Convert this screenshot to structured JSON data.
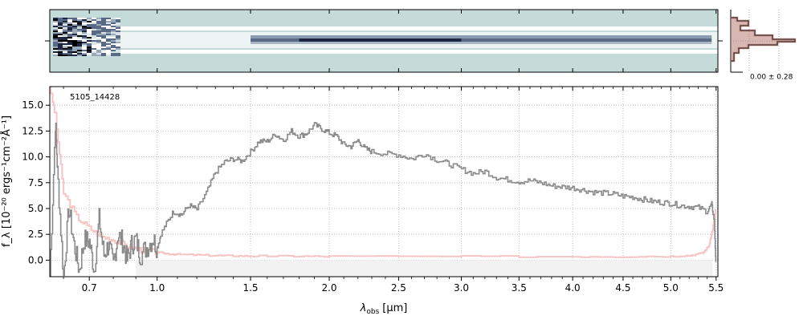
{
  "spectrum2d": {
    "colors": {
      "background": "#c5dbd9",
      "dark": "#1f2642",
      "mid": "#5a6a86",
      "light": "#ffffff"
    }
  },
  "histogram": {
    "annotation": "0.00 ± 0.28",
    "colors": {
      "dark": "#333333",
      "fill": "#b87a73"
    }
  },
  "chart_data": {
    "type": "line",
    "title": "",
    "object_label": "5105_14428",
    "xlabel_main": "λ",
    "xlabel_sub": "obs",
    "xlabel_unit": "[μm]",
    "ylabel": "f_λ [10⁻²⁰ ergs⁻¹cm⁻²Å⁻¹]",
    "x_scale": "sqrt",
    "xlim": [
      0.55,
      5.52
    ],
    "ylim": [
      -1.6,
      16.8
    ],
    "xticks": [
      0.7,
      1.0,
      1.5,
      2.0,
      2.5,
      3.0,
      3.5,
      4.0,
      4.5,
      5.0,
      5.5
    ],
    "xtick_labels": [
      "0.7",
      "1.0",
      "1.5",
      "2.0",
      "2.5",
      "3.0",
      "3.5",
      "4.0",
      "4.5",
      "5.0",
      "5.5"
    ],
    "yticks": [
      0.0,
      2.5,
      5.0,
      7.5,
      10.0,
      12.5,
      15.0
    ],
    "ytick_labels": [
      "0.0",
      "2.5",
      "5.0",
      "7.5",
      "10.0",
      "12.5",
      "15.0"
    ],
    "grid": true,
    "colors": {
      "flux": "#8a8a8a",
      "error": "#f7c4c4",
      "model": "#c98a84",
      "zero_band": "#f2f2f2"
    },
    "series": [
      {
        "role": "flux",
        "x": [
          0.55,
          0.57,
          0.58,
          0.6,
          0.62,
          0.64,
          0.66,
          0.68,
          0.7,
          0.72,
          0.74,
          0.76,
          0.78,
          0.8,
          0.82,
          0.84,
          0.86,
          0.88,
          0.9,
          0.92,
          0.95,
          0.98,
          1.0,
          1.02,
          1.05,
          1.08,
          1.12,
          1.16,
          1.2,
          1.25,
          1.3,
          1.35,
          1.4,
          1.45,
          1.5,
          1.55,
          1.6,
          1.65,
          1.7,
          1.75,
          1.8,
          1.85,
          1.9,
          1.95,
          2.0,
          2.05,
          2.1,
          2.15,
          2.2,
          2.25,
          2.3,
          2.4,
          2.5,
          2.6,
          2.7,
          2.8,
          2.9,
          3.0,
          3.1,
          3.2,
          3.3,
          3.4,
          3.5,
          3.6,
          3.7,
          3.8,
          3.9,
          4.0,
          4.1,
          4.2,
          4.3,
          4.4,
          4.5,
          4.6,
          4.7,
          4.8,
          4.9,
          5.0,
          5.1,
          5.2,
          5.3,
          5.4,
          5.45,
          5.48,
          5.5
        ],
        "y": [
          -1.6,
          13.4,
          7.5,
          -1.6,
          5.0,
          1.5,
          -1.0,
          2.0,
          1.8,
          -1.0,
          4.0,
          0.5,
          1.5,
          -0.5,
          2.5,
          1.8,
          0.0,
          1.5,
          2.0,
          0.5,
          1.2,
          2.1,
          1.2,
          2.6,
          3.7,
          4.7,
          4.4,
          5.3,
          4.9,
          6.5,
          8.5,
          9.5,
          9.8,
          9.6,
          10.5,
          11.5,
          11.5,
          12.2,
          11.6,
          12.5,
          12.0,
          12.3,
          13.1,
          12.7,
          12.3,
          12.0,
          11.2,
          11.0,
          11.6,
          10.8,
          10.5,
          10.3,
          10.2,
          9.8,
          10.3,
          9.7,
          9.3,
          8.8,
          8.4,
          8.6,
          8.0,
          7.8,
          7.6,
          7.7,
          7.5,
          7.2,
          7.1,
          7.0,
          6.8,
          6.6,
          6.5,
          6.4,
          6.2,
          6.1,
          5.9,
          5.7,
          5.6,
          5.5,
          5.3,
          5.2,
          5.1,
          4.7,
          5.4,
          3.8,
          -1.2
        ]
      },
      {
        "role": "error",
        "x": [
          0.55,
          0.57,
          0.6,
          0.65,
          0.7,
          0.75,
          0.8,
          0.85,
          0.9,
          0.95,
          1.0,
          1.05,
          1.1,
          1.2,
          1.3,
          1.4,
          1.5,
          1.6,
          1.8,
          2.0,
          3.0,
          4.0,
          4.5,
          5.0,
          5.2,
          5.35,
          5.42,
          5.46,
          5.5
        ],
        "y": [
          16.8,
          14.0,
          6.5,
          4.2,
          3.1,
          2.3,
          2.0,
          1.5,
          1.1,
          0.9,
          0.75,
          0.62,
          0.55,
          0.5,
          0.45,
          0.42,
          0.4,
          0.4,
          0.38,
          0.36,
          0.35,
          0.35,
          0.35,
          0.38,
          0.45,
          0.7,
          1.4,
          3.0,
          5.2
        ]
      }
    ]
  }
}
